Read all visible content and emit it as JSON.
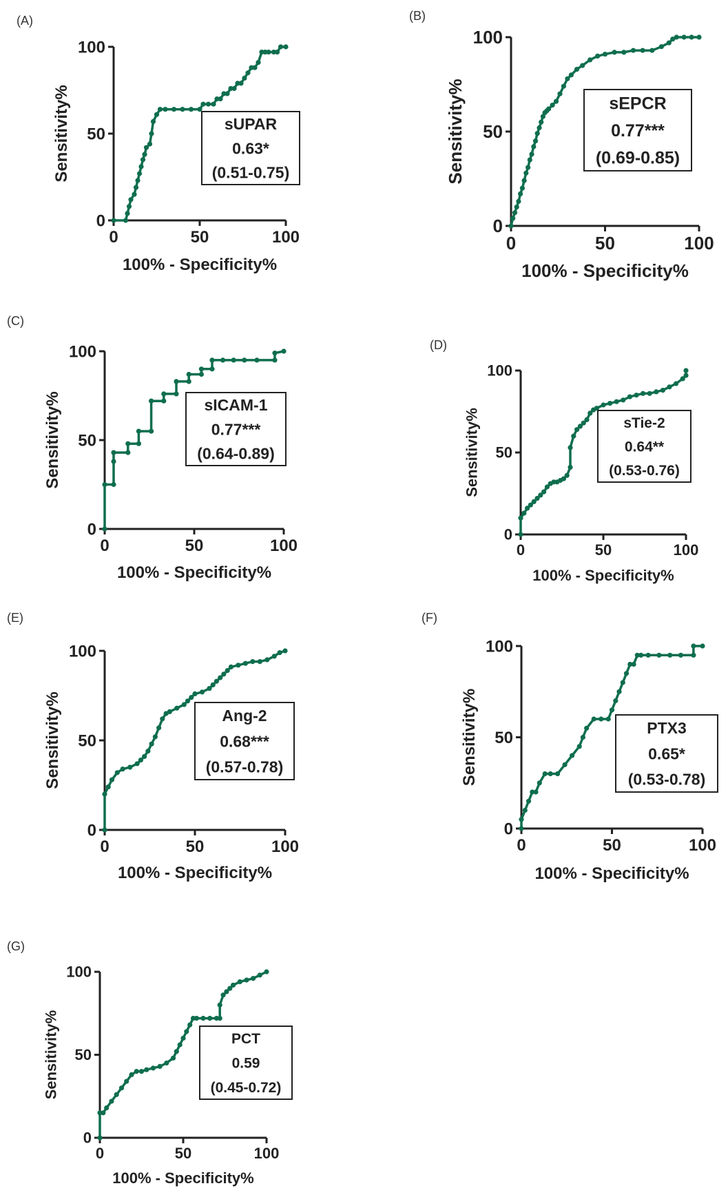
{
  "figure": {
    "style": {
      "line_color": "#0f6e4e",
      "axis_color": "#222222",
      "box_border": "#222222"
    }
  },
  "chart_data": [
    {
      "id": "A",
      "panel_label": "(A)",
      "type": "line",
      "xlabel": "100% - Specificity%",
      "ylabel": "Sensitivity%",
      "xlim": [
        0,
        100
      ],
      "ylim": [
        0,
        100
      ],
      "xticks": [
        "0",
        "50",
        "100"
      ],
      "yticks": [
        "0",
        "50",
        "100"
      ],
      "box": [
        "sUPAR",
        "0.63*",
        "(0.51-0.75)"
      ],
      "x": [
        0,
        7,
        8,
        9,
        10,
        12,
        13,
        14,
        15,
        16,
        17,
        18,
        19,
        21,
        22,
        23,
        25,
        27,
        30,
        35,
        40,
        45,
        50,
        52,
        55,
        58,
        60,
        62,
        64,
        66,
        68,
        70,
        72,
        74,
        76,
        78,
        80,
        82,
        84,
        86,
        88,
        90,
        93,
        95,
        97,
        100
      ],
      "y": [
        0,
        0,
        4,
        8,
        12,
        15,
        19,
        23,
        27,
        31,
        35,
        38,
        42,
        44,
        50,
        57,
        61,
        64,
        64,
        64,
        64,
        64,
        64,
        67,
        67,
        67,
        70,
        70,
        73,
        73,
        76,
        76,
        79,
        79,
        82,
        85,
        88,
        88,
        91,
        97,
        97,
        97,
        97,
        97,
        100,
        100
      ]
    },
    {
      "id": "B",
      "panel_label": "(B)",
      "type": "line",
      "xlabel": "100% - Specificity%",
      "ylabel": "Sensitivity%",
      "xlim": [
        0,
        100
      ],
      "ylim": [
        0,
        100
      ],
      "xticks": [
        "0",
        "50",
        "100"
      ],
      "yticks": [
        "0",
        "50",
        "100"
      ],
      "box": [
        "sEPCR",
        "0.77***",
        "(0.69-0.85)"
      ],
      "x": [
        0,
        1,
        2,
        3,
        4,
        5,
        6,
        7,
        8,
        9,
        10,
        11,
        12,
        13,
        14,
        15,
        16,
        17,
        18,
        19,
        20,
        22,
        24,
        26,
        28,
        30,
        32,
        35,
        38,
        42,
        46,
        50,
        55,
        60,
        65,
        70,
        75,
        80,
        84,
        86,
        88,
        92,
        96,
        100
      ],
      "y": [
        0,
        4,
        7,
        10,
        13,
        17,
        20,
        24,
        28,
        31,
        35,
        38,
        42,
        45,
        49,
        52,
        55,
        58,
        60,
        61,
        62,
        64,
        66,
        70,
        74,
        78,
        80,
        83,
        85,
        88,
        90,
        91,
        92,
        92,
        93,
        93,
        93,
        95,
        97,
        99,
        100,
        100,
        100,
        100
      ]
    },
    {
      "id": "C",
      "panel_label": "(C)",
      "type": "line",
      "xlabel": "100% - Specificity%",
      "ylabel": "Sensitivity%",
      "xlim": [
        0,
        100
      ],
      "ylim": [
        0,
        100
      ],
      "xticks": [
        "0",
        "50",
        "100"
      ],
      "yticks": [
        "0",
        "50",
        "100"
      ],
      "box": [
        "sICAM-1",
        "0.77***",
        "(0.64-0.89)"
      ],
      "x": [
        0,
        0,
        5,
        5,
        5,
        13,
        13,
        19,
        19,
        26,
        26,
        33,
        33,
        40,
        40,
        47,
        47,
        54,
        54,
        60,
        60,
        66,
        72,
        78,
        85,
        95,
        95,
        100
      ],
      "y": [
        0,
        25,
        25,
        38,
        43,
        43,
        48,
        48,
        55,
        55,
        72,
        72,
        76,
        76,
        83,
        83,
        87,
        87,
        90,
        90,
        95,
        95,
        95,
        95,
        95,
        95,
        99,
        100
      ]
    },
    {
      "id": "D",
      "panel_label": "(D)",
      "type": "line",
      "xlabel": "100% - Specificity%",
      "ylabel": "Sensitivity%",
      "xlim": [
        0,
        100
      ],
      "ylim": [
        0,
        100
      ],
      "xticks": [
        "0",
        "50",
        "100"
      ],
      "yticks": [
        "0",
        "50",
        "100"
      ],
      "box": [
        "sTie-2",
        "0.64**",
        "(0.53-0.76)"
      ],
      "x": [
        0,
        0,
        2,
        4,
        6,
        8,
        10,
        12,
        14,
        16,
        18,
        20,
        22,
        24,
        26,
        28,
        30,
        30,
        32,
        34,
        36,
        38,
        40,
        42,
        44,
        46,
        50,
        54,
        58,
        62,
        66,
        70,
        74,
        78,
        82,
        86,
        90,
        94,
        98,
        100,
        100
      ],
      "y": [
        0,
        10,
        13,
        16,
        18,
        20,
        22,
        24,
        26,
        29,
        31,
        32,
        32,
        33,
        34,
        36,
        41,
        53,
        60,
        64,
        66,
        68,
        70,
        74,
        76,
        77,
        79,
        80,
        81,
        82,
        84,
        85,
        86,
        86,
        87,
        88,
        90,
        92,
        95,
        97,
        100
      ]
    },
    {
      "id": "E",
      "panel_label": "(E)",
      "type": "line",
      "xlabel": "100% - Specificity%",
      "ylabel": "Sensitivity%",
      "xlim": [
        0,
        100
      ],
      "ylim": [
        0,
        100
      ],
      "xticks": [
        "0",
        "50",
        "100"
      ],
      "yticks": [
        "0",
        "50",
        "100"
      ],
      "box": [
        "Ang-2",
        "0.68***",
        "(0.57-0.78)"
      ],
      "x": [
        0,
        0,
        2,
        4,
        7,
        10,
        14,
        18,
        20,
        22,
        24,
        26,
        28,
        30,
        32,
        34,
        36,
        40,
        44,
        46,
        48,
        50,
        54,
        58,
        60,
        62,
        64,
        66,
        68,
        70,
        74,
        78,
        82,
        86,
        90,
        94,
        97,
        100
      ],
      "y": [
        0,
        20,
        24,
        28,
        32,
        34,
        35,
        37,
        39,
        41,
        44,
        48,
        52,
        57,
        62,
        65,
        66,
        68,
        70,
        72,
        74,
        76,
        77,
        79,
        81,
        83,
        85,
        87,
        89,
        91,
        92,
        93,
        94,
        94,
        95,
        97,
        99,
        100
      ]
    },
    {
      "id": "F",
      "panel_label": "(F)",
      "type": "line",
      "xlabel": "100% - Specificity%",
      "ylabel": "Sensitivity%",
      "xlim": [
        0,
        100
      ],
      "ylim": [
        0,
        100
      ],
      "xticks": [
        "0",
        "50",
        "100"
      ],
      "yticks": [
        "0",
        "50",
        "100"
      ],
      "box": [
        "PTX3",
        "0.65*",
        "(0.53-0.78)"
      ],
      "x": [
        0,
        0,
        2,
        4,
        6,
        8,
        10,
        13,
        16,
        20,
        24,
        28,
        32,
        34,
        36,
        40,
        44,
        48,
        50,
        52,
        54,
        56,
        58,
        60,
        62,
        64,
        66,
        70,
        76,
        82,
        88,
        95,
        95,
        100
      ],
      "y": [
        0,
        5,
        10,
        15,
        20,
        20,
        25,
        30,
        30,
        30,
        35,
        40,
        45,
        50,
        55,
        60,
        60,
        60,
        65,
        70,
        75,
        80,
        85,
        90,
        90,
        95,
        95,
        95,
        95,
        95,
        95,
        95,
        100,
        100
      ]
    },
    {
      "id": "G",
      "panel_label": "(G)",
      "type": "line",
      "xlabel": "100% - Specificity%",
      "ylabel": "Sensitivity%",
      "xlim": [
        0,
        100
      ],
      "ylim": [
        0,
        100
      ],
      "xticks": [
        "0",
        "50",
        "100"
      ],
      "yticks": [
        "0",
        "50",
        "100"
      ],
      "box": [
        "PCT",
        "0.59",
        "(0.45-0.72)"
      ],
      "x": [
        0,
        0,
        2,
        4,
        7,
        10,
        13,
        16,
        19,
        22,
        25,
        28,
        32,
        36,
        40,
        44,
        46,
        48,
        50,
        52,
        54,
        56,
        58,
        62,
        66,
        70,
        72,
        72,
        74,
        76,
        78,
        80,
        84,
        88,
        92,
        96,
        100
      ],
      "y": [
        0,
        15,
        15,
        18,
        22,
        26,
        30,
        34,
        38,
        40,
        40,
        41,
        42,
        43,
        45,
        48,
        52,
        56,
        60,
        64,
        68,
        72,
        72,
        72,
        72,
        72,
        72,
        80,
        86,
        88,
        90,
        92,
        94,
        95,
        96,
        98,
        100
      ]
    }
  ]
}
